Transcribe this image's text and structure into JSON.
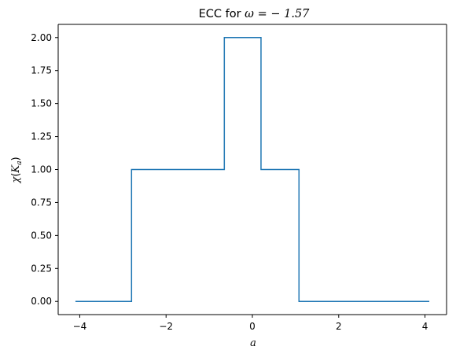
{
  "chart_data": {
    "type": "line",
    "drawstyle": "steps-post",
    "title_prefix": "ECC for ",
    "title_math": "ω = − 1.57",
    "xlabel": "a",
    "ylabel_chi": "χ",
    "ylabel_args": "K",
    "ylabel_sub": "a",
    "xlim": [
      -4.5,
      4.5
    ],
    "ylim": [
      -0.1,
      2.1
    ],
    "xticks": [
      -4,
      -2,
      0,
      2,
      4
    ],
    "xtick_labels": [
      "−4",
      "−2",
      "0",
      "2",
      "4"
    ],
    "yticks": [
      0.0,
      0.25,
      0.5,
      0.75,
      1.0,
      1.25,
      1.5,
      1.75,
      2.0
    ],
    "ytick_labels": [
      "0.00",
      "0.25",
      "0.50",
      "0.75",
      "1.00",
      "1.25",
      "1.50",
      "1.75",
      "2.00"
    ],
    "series": [
      {
        "color": "#1f77b4",
        "x": [
          -4.1,
          -2.8,
          -0.65,
          0.2,
          1.08,
          4.1
        ],
        "y": [
          0,
          1,
          2,
          1,
          0,
          0
        ]
      }
    ],
    "grid": false,
    "legend": false
  }
}
